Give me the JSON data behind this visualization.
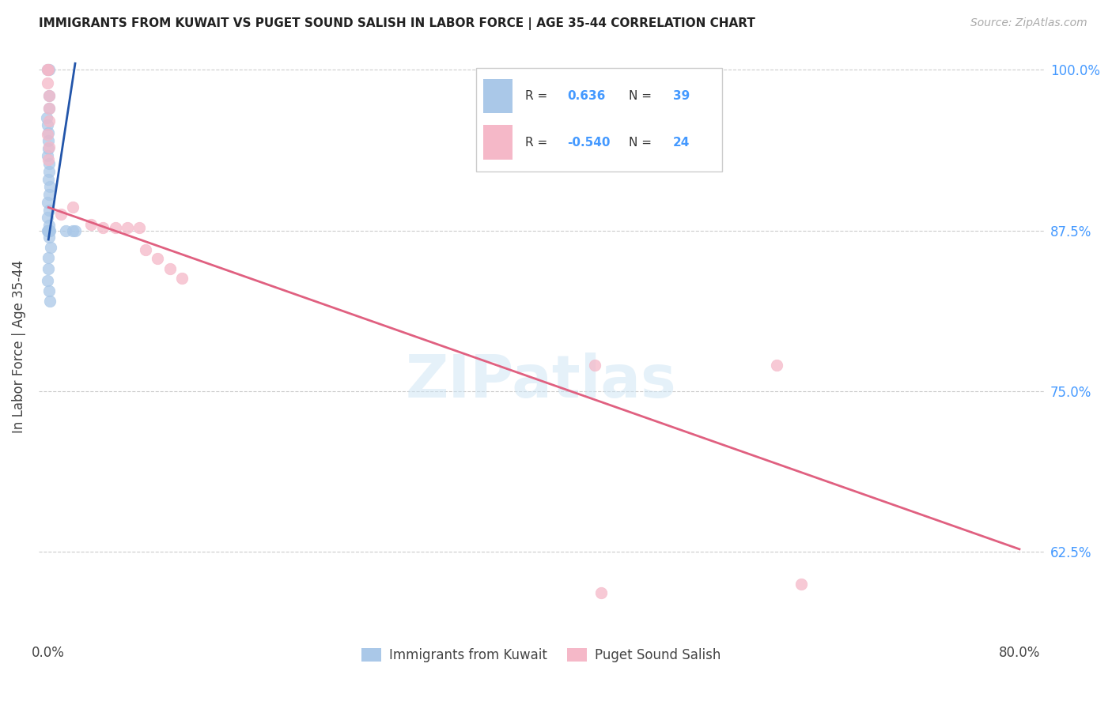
{
  "title": "IMMIGRANTS FROM KUWAIT VS PUGET SOUND SALISH IN LABOR FORCE | AGE 35-44 CORRELATION CHART",
  "source": "Source: ZipAtlas.com",
  "ylabel": "In Labor Force | Age 35-44",
  "ytick_vals": [
    0.625,
    0.75,
    0.875,
    1.0
  ],
  "ytick_labels": [
    "62.5%",
    "75.0%",
    "87.5%",
    "100.0%"
  ],
  "xtick_vals": [
    0.0,
    0.8
  ],
  "xtick_labels": [
    "0.0%",
    "80.0%"
  ],
  "xlim": [
    -0.008,
    0.82
  ],
  "ylim": [
    0.555,
    1.015
  ],
  "grid_color": "#cccccc",
  "watermark": "ZIPatlas",
  "legend_r_blue": "0.636",
  "legend_n_blue": "39",
  "legend_r_pink": "-0.540",
  "legend_n_pink": "24",
  "blue_scatter_x": [
    0.0,
    0.0,
    0.0,
    0.0,
    0.0,
    0.0,
    0.0,
    0.0,
    0.0,
    0.0,
    0.0,
    0.0,
    0.0,
    0.0,
    0.0,
    0.0,
    0.0,
    0.0,
    0.0,
    0.0,
    0.0,
    0.0,
    0.0,
    0.0,
    0.0,
    0.0,
    0.0,
    0.0,
    0.0,
    0.0,
    0.0,
    0.0,
    0.0,
    0.0,
    0.0,
    0.0,
    0.014,
    0.02,
    0.022
  ],
  "blue_scatter_y": [
    1.0,
    1.0,
    0.98,
    0.97,
    0.963,
    0.957,
    0.951,
    0.945,
    0.939,
    0.933,
    0.927,
    0.921,
    0.915,
    0.909,
    0.903,
    0.897,
    0.891,
    0.885,
    0.879,
    0.875,
    0.875,
    0.875,
    0.875,
    0.875,
    0.875,
    0.875,
    0.875,
    0.875,
    0.875,
    0.87,
    0.862,
    0.854,
    0.845,
    0.836,
    0.828,
    0.82,
    0.875,
    0.875,
    0.875
  ],
  "pink_scatter_x": [
    0.0,
    0.0,
    0.0,
    0.0,
    0.0,
    0.0,
    0.0,
    0.0,
    0.0,
    0.01,
    0.02,
    0.035,
    0.045,
    0.055,
    0.065,
    0.075,
    0.08,
    0.09,
    0.1,
    0.11,
    0.45,
    0.455,
    0.6,
    0.62
  ],
  "pink_scatter_y": [
    1.0,
    1.0,
    0.99,
    0.98,
    0.97,
    0.96,
    0.95,
    0.94,
    0.93,
    0.888,
    0.893,
    0.88,
    0.877,
    0.877,
    0.877,
    0.877,
    0.86,
    0.853,
    0.845,
    0.838,
    0.77,
    0.593,
    0.77,
    0.6
  ],
  "blue_line_x": [
    0.0,
    0.022
  ],
  "blue_line_y": [
    0.868,
    1.005
  ],
  "pink_line_x": [
    0.0,
    0.8
  ],
  "pink_line_y": [
    0.893,
    0.627
  ],
  "blue_color": "#aac8e8",
  "pink_color": "#f5b8c8",
  "blue_line_color": "#2255aa",
  "pink_line_color": "#e06080",
  "title_color": "#222222",
  "axis_label_color": "#555555",
  "right_tick_color": "#4499ff"
}
